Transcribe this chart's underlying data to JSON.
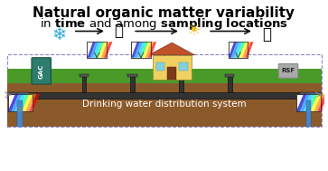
{
  "title_line1": "Natural organic matter variability",
  "title_line2_parts": [
    {
      "text": "in ",
      "bold": false
    },
    {
      "text": "time",
      "bold": true
    },
    {
      "text": " and among ",
      "bold": false
    },
    {
      "text": "sampling locations",
      "bold": true
    }
  ],
  "bg_color": "#ffffff",
  "border_color": "#000000",
  "ground_green": "#4a9a2a",
  "ground_brown": "#8B5A2B",
  "pipe_color": "#222222",
  "gac_color": "#2d7d6e",
  "rsf_color": "#aaaaaa",
  "house_wall": "#f0d060",
  "house_roof": "#c0522a",
  "house_door": "#7a3a1a",
  "house_window": "#80d0e0",
  "water_system_text": "Drinking water distribution system",
  "water_text_color": "#ffffff",
  "dashed_border_color": "#8888cc",
  "snowflake_color": "#30aadd",
  "sun_color": "#f0c020",
  "leaf_green_color": "#44aa22",
  "leaf_autumn_color": "#cc8822",
  "arrow_color": "#111111",
  "small_arrow_color": "#888888"
}
